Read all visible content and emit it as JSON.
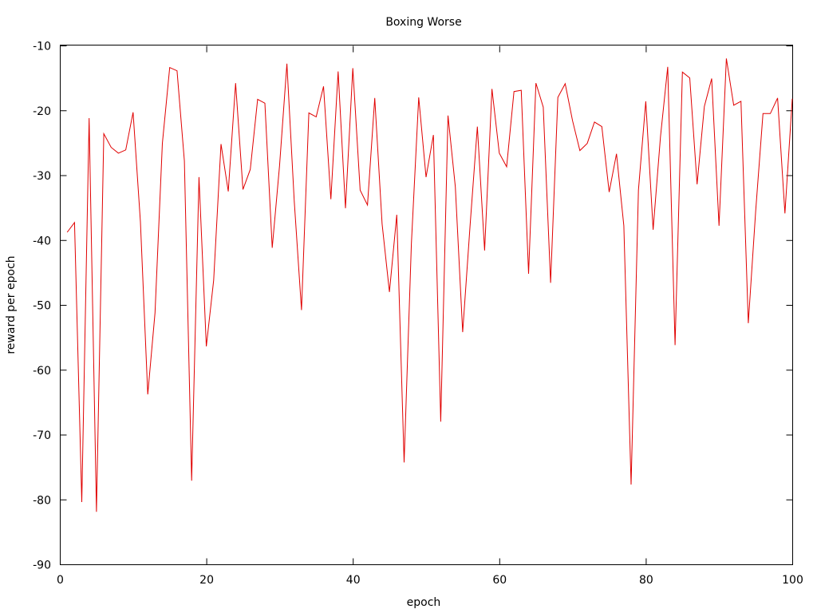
{
  "chart_data": {
    "type": "line",
    "title": "Boxing Worse",
    "xlabel": "epoch",
    "ylabel": "reward per epoch",
    "xlim": [
      0,
      100
    ],
    "ylim": [
      -90,
      -10
    ],
    "x_ticks": [
      0,
      20,
      40,
      60,
      80,
      100
    ],
    "y_ticks": [
      -90,
      -80,
      -70,
      -60,
      -50,
      -40,
      -30,
      -20,
      -10
    ],
    "grid": false,
    "legend": "none",
    "series": [
      {
        "color": "#e00000",
        "x": [
          1,
          2,
          3,
          4,
          5,
          6,
          7,
          8,
          9,
          10,
          11,
          12,
          13,
          14,
          15,
          16,
          17,
          18,
          19,
          20,
          21,
          22,
          23,
          24,
          25,
          26,
          27,
          28,
          29,
          30,
          31,
          32,
          33,
          34,
          35,
          36,
          37,
          38,
          39,
          40,
          41,
          42,
          43,
          44,
          45,
          46,
          47,
          48,
          49,
          50,
          51,
          52,
          53,
          54,
          55,
          56,
          57,
          58,
          59,
          60,
          61,
          62,
          63,
          64,
          65,
          66,
          67,
          68,
          69,
          70,
          71,
          72,
          73,
          74,
          75,
          76,
          77,
          78,
          79,
          80,
          81,
          82,
          83,
          84,
          85,
          86,
          87,
          88,
          89,
          90,
          91,
          92,
          93,
          94,
          95,
          96,
          97,
          98,
          99,
          100
        ],
        "values": [
          -38.8,
          -37.3,
          -80.4,
          -21.2,
          -81.9,
          -23.6,
          -25.7,
          -26.6,
          -26.1,
          -20.3,
          -37.2,
          -63.8,
          -51.2,
          -25.1,
          -13.4,
          -13.9,
          -27.8,
          -77.1,
          -30.3,
          -56.4,
          -46.2,
          -25.2,
          -32.5,
          -15.8,
          -32.2,
          -29.1,
          -18.3,
          -18.9,
          -41.2,
          -28.5,
          -12.8,
          -34.0,
          -50.8,
          -20.4,
          -21.0,
          -16.3,
          -33.7,
          -14.0,
          -35.1,
          -13.5,
          -32.3,
          -34.6,
          -18.1,
          -37.5,
          -48.0,
          -36.1,
          -74.3,
          -40.6,
          -18.0,
          -30.3,
          -23.8,
          -68.0,
          -20.8,
          -31.8,
          -54.2,
          -37.9,
          -22.5,
          -41.6,
          -16.7,
          -26.6,
          -28.7,
          -17.1,
          -16.9,
          -45.2,
          -15.8,
          -19.5,
          -46.6,
          -18.0,
          -15.9,
          -21.6,
          -26.2,
          -25.1,
          -21.8,
          -22.5,
          -32.6,
          -26.7,
          -37.8,
          -77.7,
          -32.3,
          -18.6,
          -38.4,
          -24.1,
          -13.3,
          -56.2,
          -14.1,
          -15.0,
          -31.4,
          -19.4,
          -15.1,
          -37.8,
          -12.0,
          -19.2,
          -18.6,
          -52.8,
          -35.6,
          -20.5,
          -20.5,
          -18.1,
          -35.9,
          -18.2
        ]
      }
    ]
  }
}
